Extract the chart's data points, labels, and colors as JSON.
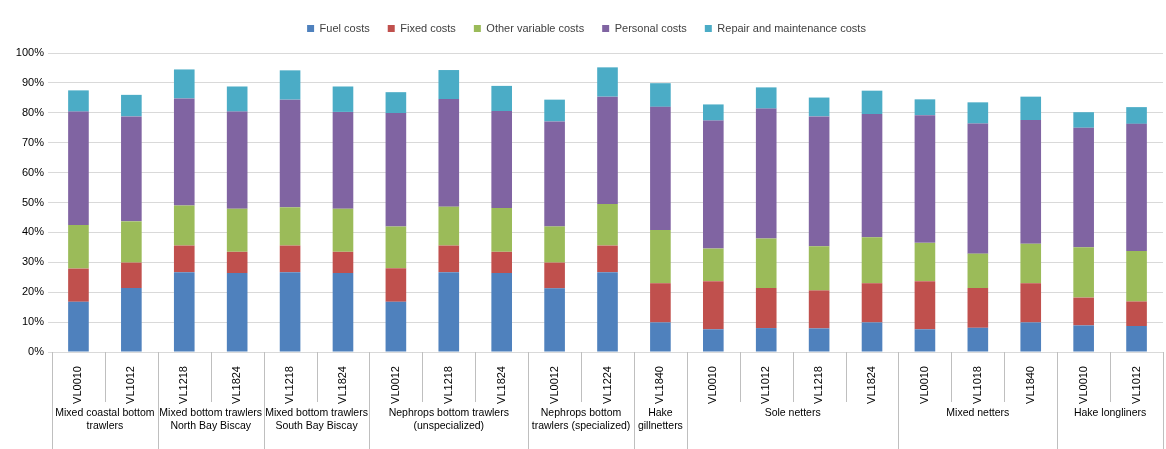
{
  "chart_data": {
    "type": "bar",
    "stacked": true,
    "legend": "top",
    "grid": "y",
    "categories": [
      "VL0010",
      "VL1012",
      "VL1218",
      "VL1824",
      "VL1218",
      "VL1824",
      "VL0012",
      "VL1218",
      "VL1824",
      "VL0012",
      "VL1224",
      "VL1840",
      "VL0010",
      "VL1012",
      "VL1218",
      "VL1824",
      "VL0010",
      "VL1018",
      "VL1840",
      "VL0010",
      "VL1012"
    ],
    "series": [
      {
        "name": "Fuel costs",
        "color": "#4f81bd",
        "values": [
          16.8,
          21.4,
          26.7,
          26.4,
          26.7,
          26.4,
          16.8,
          26.7,
          26.4,
          21.3,
          26.7,
          9.9,
          7.6,
          8.0,
          7.9,
          9.9,
          7.6,
          8.1,
          9.9,
          8.9,
          8.7
        ]
      },
      {
        "name": "Fixed costs",
        "color": "#c0504d",
        "values": [
          11.1,
          8.5,
          8.9,
          7.1,
          8.9,
          7.1,
          11.2,
          8.9,
          7.1,
          8.6,
          8.9,
          13.1,
          16.1,
          13.4,
          12.7,
          13.1,
          16.1,
          13.3,
          13.1,
          9.3,
          8.2
        ]
      },
      {
        "name": "Other variable costs",
        "color": "#9bbb59",
        "values": [
          14.6,
          13.8,
          13.4,
          14.4,
          12.8,
          14.4,
          14.0,
          13.0,
          14.7,
          12.1,
          13.9,
          17.8,
          10.9,
          16.6,
          14.8,
          15.4,
          12.8,
          11.5,
          13.2,
          16.8,
          16.9
        ]
      },
      {
        "name": "Personal costs",
        "color": "#8064a2",
        "values": [
          37.9,
          35.1,
          35.8,
          32.5,
          36.0,
          32.4,
          37.9,
          36.0,
          32.4,
          35.1,
          35.9,
          41.2,
          42.8,
          43.4,
          43.4,
          41.2,
          42.7,
          43.5,
          41.4,
          40.0,
          42.5
        ]
      },
      {
        "name": "Repair and maintenance costs",
        "color": "#4bacc6",
        "values": [
          7.1,
          7.2,
          9.7,
          8.4,
          9.8,
          8.5,
          7.0,
          9.7,
          8.4,
          7.3,
          9.8,
          7.9,
          5.4,
          7.1,
          6.3,
          7.8,
          5.3,
          7.1,
          7.8,
          5.2,
          5.6
        ]
      }
    ],
    "ylim": [
      0,
      100
    ],
    "yticks": [
      {
        "value": 0,
        "label": "0%"
      },
      {
        "value": 10,
        "label": "10%"
      },
      {
        "value": 20,
        "label": "20%"
      },
      {
        "value": 30,
        "label": "30%"
      },
      {
        "value": 40,
        "label": "40%"
      },
      {
        "value": 50,
        "label": "50%"
      },
      {
        "value": 60,
        "label": "60%"
      },
      {
        "value": 70,
        "label": "70%"
      },
      {
        "value": 80,
        "label": "80%"
      },
      {
        "value": 90,
        "label": "90%"
      },
      {
        "value": 100,
        "label": "100%"
      }
    ],
    "annotations": [
      "Mixed coastal bottom trawlers",
      "Mixed bottom trawlers North Bay Biscay",
      "Mixed bottom trawlers South Bay Biscay",
      "Nephrops bottom trawlers (unspecialized)",
      "Nephrops bottom trawlers (specialized)",
      "Hake gillnetters",
      "Sole netters",
      "Mixed netters",
      "Hake longliners"
    ]
  }
}
